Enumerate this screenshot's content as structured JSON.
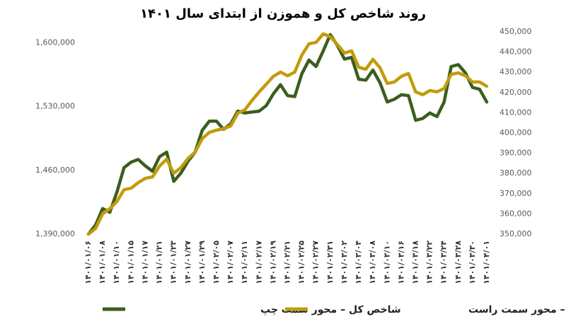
{
  "chart_data": {
    "type": "line",
    "title": "روند شاخص کل و هموزن از ابتدای سال ۱۴۰۱",
    "categories": [
      "۱۴۰۱/۰۱/۰۶",
      null,
      "۱۴۰۱/۰۱/۰۸",
      null,
      "۱۴۰۱/۰۱/۱۰",
      null,
      "۱۴۰۱/۰۱/۱۵",
      null,
      "۱۴۰۱/۰۱/۱۷",
      null,
      "۱۴۰۱/۰۱/۲۱",
      null,
      "۱۴۰۱/۰۱/۲۳",
      null,
      "۱۴۰۱/۰۱/۲۷",
      null,
      "۱۴۰۱/۰۱/۲۹",
      null,
      "۱۴۰۱/۰۲/۰۵",
      null,
      "۱۴۰۱/۰۲/۰۷",
      null,
      "۱۴۰۱/۰۲/۱۱",
      null,
      "۱۴۰۱/۰۲/۱۷",
      null,
      "۱۴۰۱/۰۲/۱۹",
      null,
      "۱۴۰۱/۰۲/۲۱",
      null,
      "۱۴۰۱/۰۲/۲۵",
      null,
      "۱۴۰۱/۰۲/۲۷",
      null,
      "۱۴۰۱/۰۲/۳۱",
      null,
      "۱۴۰۱/۰۳/۰۲",
      null,
      "۱۴۰۱/۰۳/۰۴",
      null,
      "۱۴۰۱/۰۳/۰۸",
      null,
      "۱۴۰۱/۰۳/۱۰",
      null,
      "۱۴۰۱/۰۳/۱۶",
      null,
      "۱۴۰۱/۰۳/۱۸",
      null,
      "۱۴۰۱/۰۳/۲۲",
      null,
      "۱۴۰۱/۰۳/۲۴",
      null,
      "۱۴۰۱/۰۳/۲۸",
      null,
      "۱۴۰۱/۰۳/۳۰",
      null,
      "۱۴۰۱/۰۴/۰۱"
    ],
    "series": [
      {
        "name": "شاخص کل – محور سمت چپ",
        "color": "#3b5e1f",
        "axis": "y",
        "values": [
          1390000,
          1400000,
          1418000,
          1414000,
          1436000,
          1463000,
          1469000,
          1472000,
          1465000,
          1459000,
          1475000,
          1480000,
          1448000,
          1457000,
          1470000,
          1480000,
          1504000,
          1514000,
          1514000,
          1505000,
          1511000,
          1525000,
          1523000,
          1524000,
          1525000,
          1531000,
          1544000,
          1554000,
          1542000,
          1541000,
          1566000,
          1581000,
          1574000,
          1591000,
          1609000,
          1597000,
          1582000,
          1584000,
          1560000,
          1559000,
          1570000,
          1556000,
          1535000,
          1538000,
          1543000,
          1542000,
          1515000,
          1517000,
          1523000,
          1519000,
          1535000,
          1574000,
          1576000,
          1567000,
          1551000,
          1549000,
          1535000
        ]
      },
      {
        "name": "شاخص هموزن – محور سمت راست",
        "color": "#c29b0c",
        "axis": "y2",
        "values": [
          350000,
          352800,
          360100,
          362600,
          366100,
          372000,
          372700,
          375500,
          377600,
          378300,
          383600,
          387100,
          380100,
          382900,
          387400,
          390600,
          397200,
          400300,
          401400,
          402100,
          403500,
          409800,
          411500,
          416100,
          420300,
          424100,
          428000,
          430100,
          428300,
          430100,
          438500,
          444100,
          444800,
          449000,
          447600,
          443700,
          439500,
          440600,
          432500,
          431500,
          436400,
          432200,
          424500,
          425200,
          428000,
          429400,
          420300,
          418900,
          421000,
          420300,
          422000,
          429000,
          429700,
          428300,
          425200,
          425200,
          423100
        ]
      }
    ],
    "ylim": [
      1390000,
      1612000
    ],
    "yticks": [
      {
        "value": 1390000,
        "label": "1,390,000"
      },
      {
        "value": 1460000,
        "label": "1,460,000"
      },
      {
        "value": 1530000,
        "label": "1,530,000"
      },
      {
        "value": 1600000,
        "label": "1,600,000"
      }
    ],
    "y2lim": [
      350000,
      450000
    ],
    "y2ticks": [
      {
        "value": 350000,
        "label": "350,000"
      },
      {
        "value": 360000,
        "label": "360,000"
      },
      {
        "value": 370000,
        "label": "370,000"
      },
      {
        "value": 380000,
        "label": "380,000"
      },
      {
        "value": 390000,
        "label": "390,000"
      },
      {
        "value": 400000,
        "label": "400,000"
      },
      {
        "value": 410000,
        "label": "410,000"
      },
      {
        "value": 420000,
        "label": "420,000"
      },
      {
        "value": 430000,
        "label": "430,000"
      },
      {
        "value": 440000,
        "label": "440,000"
      },
      {
        "value": 450000,
        "label": "450,000"
      }
    ],
    "grid": false
  }
}
